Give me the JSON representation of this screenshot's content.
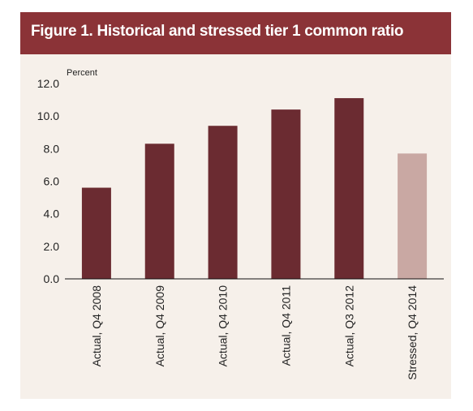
{
  "figure": {
    "title": "Figure 1. Historical and stressed tier 1 common ratio"
  },
  "chart_data": {
    "type": "bar",
    "title": "Figure 1. Historical and stressed tier 1 common ratio",
    "ylabel": "Percent",
    "xlabel": "",
    "ylim": [
      0,
      12
    ],
    "yticks": [
      0,
      2,
      4,
      6,
      8,
      10,
      12
    ],
    "ytick_labels": [
      "0.0",
      "2.0",
      "4.0",
      "6.0",
      "8.0",
      "10.0",
      "12.0"
    ],
    "grid": false,
    "categories": [
      "Actual, Q4 2008",
      "Actual, Q4 2009",
      "Actual, Q4 2010",
      "Actual, Q4 2011",
      "Actual, Q3 2012",
      "Stressed, Q4 2014"
    ],
    "values": [
      5.6,
      8.3,
      9.4,
      10.4,
      11.1,
      7.7
    ],
    "colors": [
      "#6b2b31",
      "#6b2b31",
      "#6b2b31",
      "#6b2b31",
      "#6b2b31",
      "#c9a8a3"
    ]
  }
}
